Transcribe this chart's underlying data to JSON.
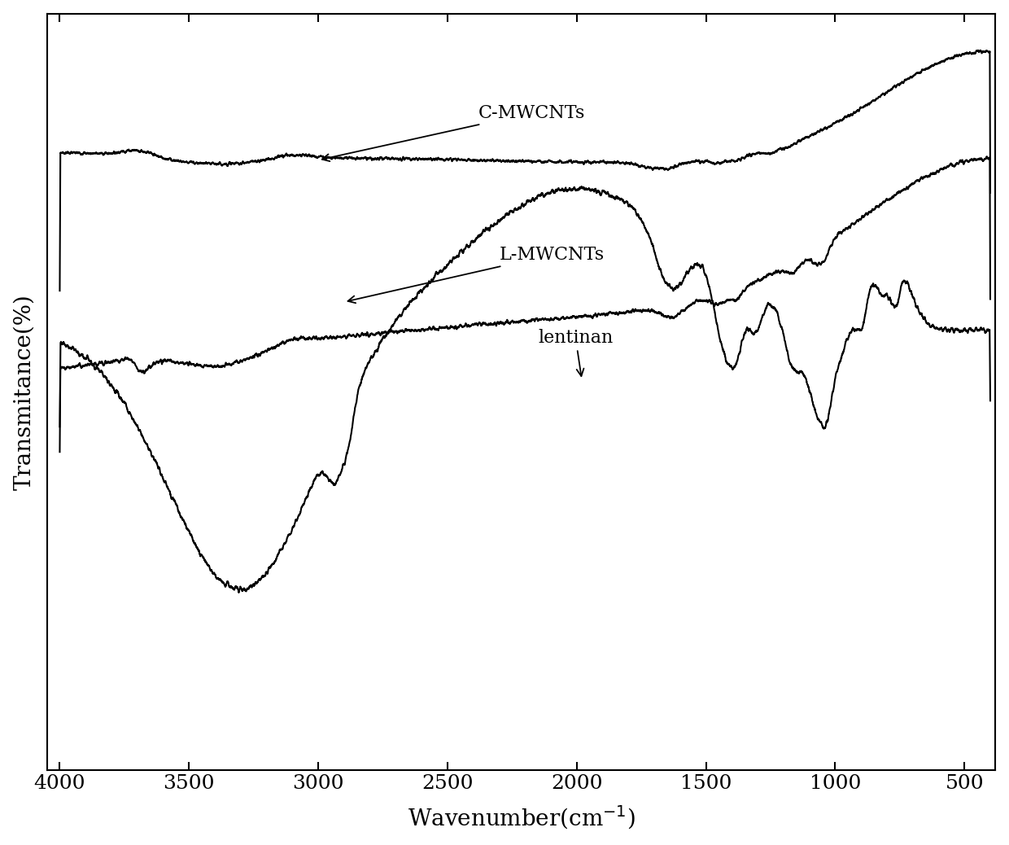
{
  "xlabel": "Wavenumber(cm⁻¹)",
  "ylabel": "Transmitance(%)",
  "xlim": [
    4000,
    400
  ],
  "xticks": [
    4000,
    3500,
    3000,
    2500,
    2000,
    1500,
    1000,
    500
  ],
  "background_color": "#ffffff",
  "line_color": "#000000",
  "linewidth": 1.5,
  "annotation_fontsize": 16,
  "tick_fontsize": 18,
  "label_fontsize": 20
}
